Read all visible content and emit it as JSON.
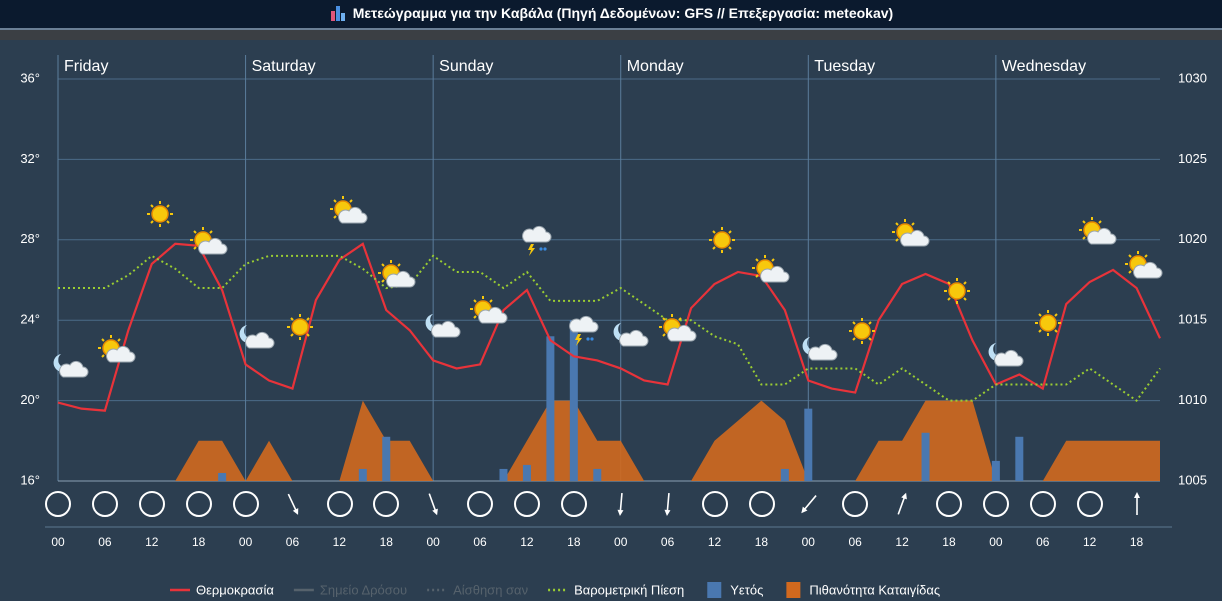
{
  "title": "Μετεώγραμμα για την Καβάλα (Πηγή Δεδομένων: GFS // Επεξεργασία: meteokav)",
  "chart_data": {
    "type": "meteogram",
    "days": [
      "Friday",
      "Saturday",
      "Sunday",
      "Monday",
      "Tuesday",
      "Wednesday"
    ],
    "categories": [
      "00",
      null,
      "06",
      null,
      "12",
      null,
      "18",
      null,
      "00",
      null,
      "06",
      null,
      "12",
      null,
      "18",
      null,
      "00",
      null,
      "06",
      null,
      "12",
      null,
      "18",
      null,
      "00",
      null,
      "06",
      null,
      "12",
      null,
      "18",
      null,
      "00",
      null,
      "06",
      null,
      "12",
      null,
      "18",
      null,
      "00",
      null,
      "06",
      null,
      "12",
      null,
      "18",
      null
    ],
    "series": [
      {
        "name": "Θερμοκρασία",
        "color": "#e8333a",
        "type": "line",
        "axis": "y",
        "values": [
          19.9,
          19.6,
          19.5,
          23.5,
          26.8,
          27.8,
          27.7,
          25.5,
          21.8,
          21.0,
          20.6,
          25.0,
          27.0,
          27.8,
          24.5,
          23.5,
          22.0,
          21.6,
          21.8,
          24.5,
          25.5,
          23.0,
          22.2,
          22.0,
          21.6,
          21.0,
          20.8,
          24.6,
          25.8,
          26.4,
          26.2,
          24.5,
          21.0,
          20.6,
          20.4,
          24.0,
          25.8,
          26.3,
          25.8,
          23.0,
          20.8,
          21.3,
          20.6,
          24.8,
          25.9,
          26.5,
          25.6,
          23.1
        ]
      },
      {
        "name": "Σημείο Δρόσου",
        "color": "#56626c",
        "type": "line",
        "visible": false
      },
      {
        "name": "Αίσθηση σαν",
        "color": "#56626c",
        "type": "line",
        "dashed": true,
        "visible": false
      },
      {
        "name": "Βαρομετρική Πίεση",
        "color": "#9acd32",
        "type": "line",
        "dashed": true,
        "axis": "y2",
        "values": [
          1017,
          1017,
          1017,
          1017.8,
          1019,
          1018.2,
          1017,
          1017,
          1018.5,
          1019,
          1019,
          1019,
          1019,
          1018.2,
          1017,
          1017.2,
          1019,
          1018,
          1018,
          1017,
          1018,
          1016.2,
          1016.2,
          1016.2,
          1017,
          1016,
          1015,
          1015,
          1014,
          1013.5,
          1011,
          1011,
          1012,
          1012,
          1012,
          1011,
          1012,
          1011,
          1010,
          1010,
          1011,
          1011,
          1011,
          1011,
          1012,
          1011,
          1010,
          1012
        ]
      },
      {
        "name": "Υετός",
        "color": "#4a78b0",
        "type": "bar",
        "axis": "y4",
        "values": [
          0,
          0,
          0,
          0,
          0,
          0,
          0,
          0.2,
          0,
          0,
          0,
          0,
          0,
          0.3,
          1.1,
          0,
          0,
          0,
          0,
          0.3,
          0.4,
          3.6,
          4.0,
          0.3,
          0,
          0,
          0,
          0,
          0,
          0,
          0,
          0.3,
          1.8,
          0,
          0,
          0,
          0,
          1.2,
          0,
          0,
          0.5,
          1.1,
          0,
          0,
          0,
          0,
          0,
          0
        ]
      },
      {
        "name": "Πιθανότητα Καταιγίδας",
        "color": "#d2691e",
        "type": "area",
        "axis": "y3",
        "values": [
          0,
          0,
          0,
          0,
          0,
          0,
          10,
          10,
          0,
          10,
          0,
          0,
          0,
          20,
          10,
          10,
          0,
          0,
          0,
          0,
          10,
          20,
          20,
          10,
          10,
          0,
          0,
          0,
          10,
          15,
          20,
          15,
          0,
          0,
          0,
          10,
          10,
          20,
          20,
          20,
          0,
          0,
          0,
          10,
          10,
          10,
          10,
          10
        ]
      }
    ],
    "ylim": [
      16,
      36
    ],
    "yticks": [
      {
        "value": 16,
        "label": "16°"
      },
      {
        "value": 20,
        "label": "20°"
      },
      {
        "value": 24,
        "label": "24°"
      },
      {
        "value": 28,
        "label": "28°"
      },
      {
        "value": 32,
        "label": "32°"
      },
      {
        "value": 36,
        "label": "36°"
      }
    ],
    "y2lim": [
      1005,
      1030
    ],
    "y2ticks": [
      1005,
      1010,
      1015,
      1020,
      1025,
      1030
    ],
    "y3lim": [
      0,
      100
    ],
    "y4lim": [
      0,
      10
    ],
    "grid": true,
    "legend": "bottom"
  }
}
